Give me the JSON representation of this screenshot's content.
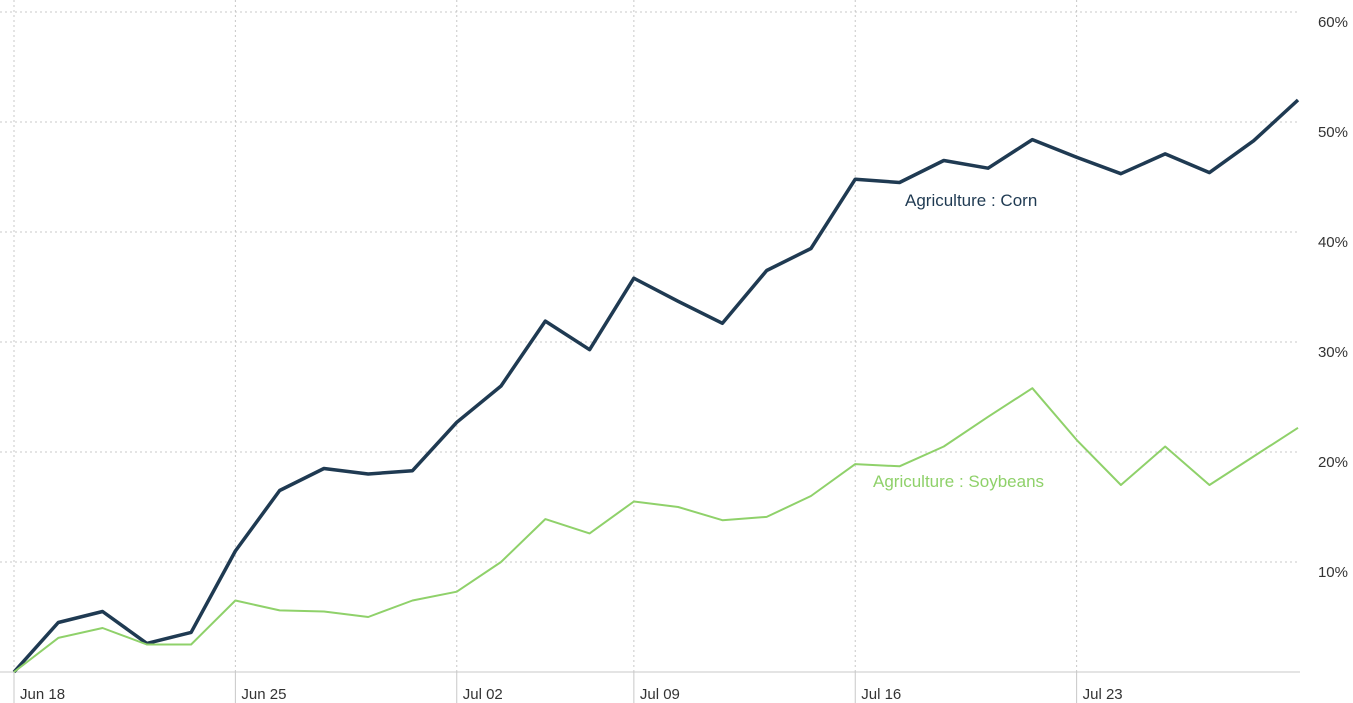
{
  "chart_data": {
    "type": "line",
    "categories": [
      "Jun 18",
      null,
      null,
      null,
      null,
      "Jun 25",
      null,
      null,
      null,
      null,
      "Jul 02",
      null,
      null,
      null,
      "Jul 09",
      null,
      null,
      null,
      null,
      "Jul 16",
      null,
      null,
      null,
      null,
      "Jul 23",
      null,
      null,
      null,
      null,
      null
    ],
    "series": [
      {
        "name": "Agriculture : Corn",
        "color": "#1f3a52",
        "values": [
          0,
          4.5,
          5.5,
          2.6,
          3.6,
          11.0,
          16.5,
          18.5,
          18.0,
          18.3,
          22.7,
          26.0,
          31.9,
          29.3,
          35.8,
          33.7,
          31.7,
          36.5,
          38.5,
          44.8,
          44.5,
          46.5,
          45.8,
          48.4,
          46.8,
          45.3,
          47.1,
          45.4,
          48.3,
          52.0
        ]
      },
      {
        "name": "Agriculture : Soybeans",
        "color": "#8fd16a",
        "values": [
          0,
          3.1,
          4.0,
          2.5,
          2.5,
          6.5,
          5.6,
          5.5,
          5.0,
          6.5,
          7.3,
          10.0,
          13.9,
          12.6,
          15.5,
          15.0,
          13.8,
          14.1,
          16.0,
          18.9,
          18.7,
          20.5,
          23.2,
          25.8,
          21.1,
          17.0,
          20.5,
          17.0,
          19.6,
          22.2
        ]
      }
    ],
    "ylim": [
      0,
      60
    ],
    "yticks": [
      {
        "value": 10,
        "label": "10%"
      },
      {
        "value": 20,
        "label": "20%"
      },
      {
        "value": 30,
        "label": "30%"
      },
      {
        "value": 40,
        "label": "40%"
      },
      {
        "value": 50,
        "label": "50%"
      },
      {
        "value": 60,
        "label": "60%"
      }
    ],
    "grid": true
  }
}
